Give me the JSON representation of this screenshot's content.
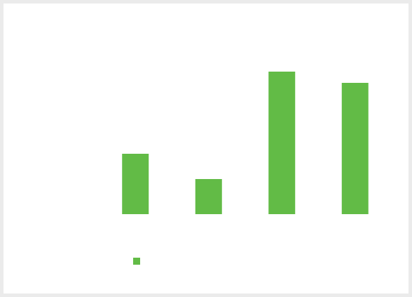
{
  "chart_data": {
    "type": "bar",
    "categories": [
      null,
      null,
      null,
      null
    ],
    "values": [
      86,
      50,
      203,
      187
    ],
    "color": "#62bb46",
    "ylim": [
      0,
      250
    ],
    "legend": "bottom"
  }
}
